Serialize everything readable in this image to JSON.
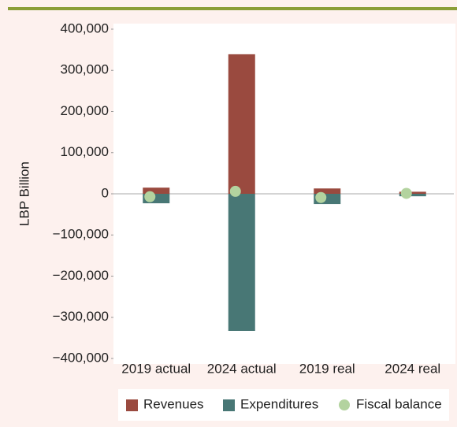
{
  "chart_data": {
    "type": "bar",
    "y_label": "LBP Billion",
    "categories": [
      "2019 actual",
      "2024 actual",
      "2019 real",
      "2024 real"
    ],
    "series": [
      {
        "name": "Revenues",
        "color": "#9a4a3f",
        "values": [
          15000,
          339000,
          13000,
          5000
        ]
      },
      {
        "name": "Expenditures",
        "color": "#487775",
        "values": [
          -23000,
          -333000,
          -25000,
          -6000
        ]
      },
      {
        "name": "Fiscal balance",
        "color": "#b3d39f",
        "type": "scatter",
        "values": [
          -7000,
          6000,
          -9000,
          1000
        ]
      }
    ],
    "ylim": [
      -400000,
      400000
    ],
    "yticks": [
      {
        "value": 400000,
        "label": "400,000"
      },
      {
        "value": 300000,
        "label": "300,000"
      },
      {
        "value": 200000,
        "label": "200,000"
      },
      {
        "value": 100000,
        "label": "100,000"
      },
      0,
      {
        "value": -100000,
        "label": "−100,000"
      },
      {
        "value": -200000,
        "label": "−200,000"
      },
      {
        "value": -300000,
        "label": "−300,000"
      },
      {
        "value": -400000,
        "label": "−400,000"
      }
    ],
    "legend": "bottom"
  }
}
